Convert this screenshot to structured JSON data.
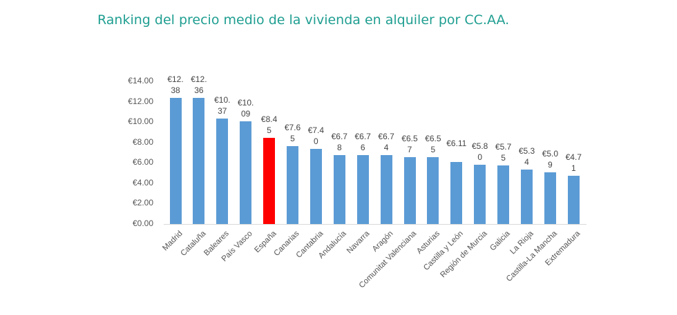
{
  "chart_data": {
    "type": "bar",
    "title": "Ranking del precio medio de la vivienda en alquiler por CC.AA.",
    "xlabel": "",
    "ylabel": "",
    "ylim": [
      0,
      14
    ],
    "yticks": [
      "€0.00",
      "€2.00",
      "€4.00",
      "€6.00",
      "€8.00",
      "€10.00",
      "€12.00",
      "€14.00"
    ],
    "grid": false,
    "categories": [
      "Madrid",
      "Cataluña",
      "Baleares",
      "País Vasco",
      "España",
      "Canarias",
      "Cantabria",
      "Andalucía",
      "Navarra",
      "Aragón",
      "Comunitat Valenciana",
      "Asturias",
      "Castilla y León",
      "Región de Murcia",
      "Galicia",
      "La Rioja",
      "Castilla-La Mancha",
      "Extremadura"
    ],
    "values": [
      12.38,
      12.36,
      10.37,
      10.09,
      8.45,
      7.65,
      7.4,
      6.78,
      6.76,
      6.74,
      6.57,
      6.55,
      6.11,
      5.8,
      5.75,
      5.34,
      5.09,
      4.71
    ],
    "data_labels": [
      "€12.38",
      "€12.36",
      "€10.37",
      "€10.09",
      "€8.45",
      "€7.65",
      "€7.40",
      "€6.78",
      "€6.76",
      "€6.74",
      "€6.57",
      "€6.55",
      "€6.11",
      "€5.80",
      "€5.75",
      "€5.34",
      "€5.09",
      "€4.71"
    ],
    "colors": {
      "default": "#5b9bd5",
      "highlight": "#ff0000",
      "title": "#1f9e91"
    },
    "highlight_category": "España"
  }
}
